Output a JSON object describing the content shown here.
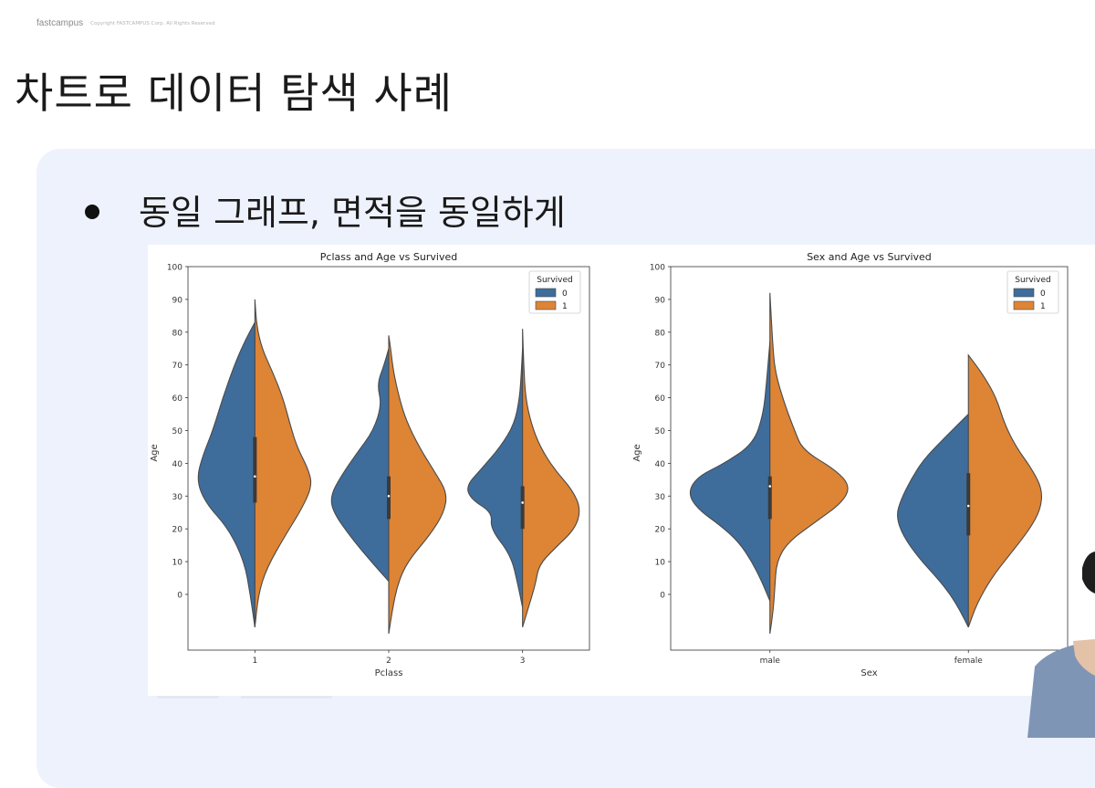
{
  "header": {
    "brand": "fastcampus",
    "copyright": "Copyright FASTCAMPUS Corp. All Rights Reserved"
  },
  "slide": {
    "title": "차트로 데이터 탐색 사례",
    "bullet": "동일 그래프, 면적을 동일하게"
  },
  "colors": {
    "survived_0": "#3e6d9c",
    "survived_1": "#dd8435",
    "outline": "#4a4a4a",
    "panel": "#eef2fc"
  },
  "chart_data": [
    {
      "type": "violin",
      "title": "Pclass and Age vs Survived",
      "xlabel": "Pclass",
      "ylabel": "Age",
      "categories": [
        "1",
        "2",
        "3"
      ],
      "yticks": [
        0,
        10,
        20,
        30,
        40,
        50,
        60,
        70,
        80,
        90,
        100
      ],
      "ylim": [
        -17,
        100
      ],
      "split": true,
      "legend": {
        "title": "Survived",
        "entries": [
          "0",
          "1"
        ],
        "position": "top-right"
      },
      "series": [
        {
          "name": "0",
          "violins": [
            {
              "min": -10,
              "max": 83,
              "widths": [
                [
                  -10,
                  0
                ],
                [
                  0,
                  0.08
                ],
                [
                  10,
                  0.18
                ],
                [
                  20,
                  0.45
                ],
                [
                  28,
                  0.85
                ],
                [
                  35,
                  1.0
                ],
                [
                  42,
                  0.9
                ],
                [
                  50,
                  0.72
                ],
                [
                  60,
                  0.55
                ],
                [
                  70,
                  0.35
                ],
                [
                  77,
                  0.18
                ],
                [
                  83,
                  0
                ]
              ]
            },
            {
              "min": 4,
              "max": 75,
              "widths": [
                [
                  4,
                  0
                ],
                [
                  10,
                  0.3
                ],
                [
                  17,
                  0.63
                ],
                [
                  25,
                  0.95
                ],
                [
                  30,
                  1.0
                ],
                [
                  36,
                  0.82
                ],
                [
                  43,
                  0.55
                ],
                [
                  50,
                  0.26
                ],
                [
                  58,
                  0.12
                ],
                [
                  64,
                  0.2
                ],
                [
                  70,
                  0.08
                ],
                [
                  75,
                  0
                ]
              ]
            },
            {
              "min": -4,
              "max": 75,
              "widths": [
                [
                  -4,
                  0
                ],
                [
                  3,
                  0.08
                ],
                [
                  12,
                  0.2
                ],
                [
                  20,
                  0.55
                ],
                [
                  25,
                  0.52
                ],
                [
                  29,
                  0.88
                ],
                [
                  33,
                  0.97
                ],
                [
                  38,
                  0.72
                ],
                [
                  45,
                  0.38
                ],
                [
                  52,
                  0.14
                ],
                [
                  60,
                  0.05
                ],
                [
                  68,
                  0.02
                ],
                [
                  75,
                  0
                ]
              ]
            }
          ]
        },
        {
          "name": "1",
          "violins": [
            {
              "min": -10,
              "max": 90,
              "widths": [
                [
                  -10,
                  0
                ],
                [
                  0,
                  0.06
                ],
                [
                  8,
                  0.2
                ],
                [
                  18,
                  0.52
                ],
                [
                  26,
                  0.8
                ],
                [
                  33,
                  0.98
                ],
                [
                  38,
                  0.92
                ],
                [
                  45,
                  0.72
                ],
                [
                  52,
                  0.6
                ],
                [
                  60,
                  0.48
                ],
                [
                  68,
                  0.3
                ],
                [
                  75,
                  0.12
                ],
                [
                  82,
                  0.03
                ],
                [
                  90,
                  0
                ]
              ]
            },
            {
              "min": -12,
              "max": 79,
              "widths": [
                [
                  -12,
                  0
                ],
                [
                  -5,
                  0.06
                ],
                [
                  3,
                  0.15
                ],
                [
                  10,
                  0.32
                ],
                [
                  18,
                  0.7
                ],
                [
                  25,
                  0.95
                ],
                [
                  31,
                  1.0
                ],
                [
                  37,
                  0.8
                ],
                [
                  45,
                  0.52
                ],
                [
                  53,
                  0.3
                ],
                [
                  60,
                  0.18
                ],
                [
                  68,
                  0.08
                ],
                [
                  74,
                  0.04
                ],
                [
                  79,
                  0
                ]
              ]
            },
            {
              "min": -10,
              "max": 81,
              "widths": [
                [
                  -10,
                  0
                ],
                [
                  -4,
                  0.1
                ],
                [
                  3,
                  0.22
                ],
                [
                  9,
                  0.28
                ],
                [
                  14,
                  0.55
                ],
                [
                  20,
                  0.9
                ],
                [
                  26,
                  1.0
                ],
                [
                  32,
                  0.85
                ],
                [
                  38,
                  0.55
                ],
                [
                  45,
                  0.3
                ],
                [
                  52,
                  0.15
                ],
                [
                  60,
                  0.05
                ],
                [
                  70,
                  0.02
                ],
                [
                  81,
                  0
                ]
              ]
            }
          ]
        }
      ],
      "box_median": [
        36,
        30,
        28
      ],
      "box_iqr": [
        [
          28,
          48
        ],
        [
          23,
          36
        ],
        [
          20,
          33
        ]
      ]
    },
    {
      "type": "violin",
      "title": "Sex and Age vs Survived",
      "xlabel": "Sex",
      "ylabel": "Age",
      "categories": [
        "male",
        "female"
      ],
      "yticks": [
        0,
        10,
        20,
        30,
        40,
        50,
        60,
        70,
        80,
        90,
        100
      ],
      "ylim": [
        -17,
        100
      ],
      "split": true,
      "legend": {
        "title": "Survived",
        "entries": [
          "0",
          "1"
        ],
        "position": "top-right"
      },
      "series": [
        {
          "name": "0",
          "violins": [
            {
              "min": -2,
              "max": 77,
              "widths": [
                [
                  -2,
                  0
                ],
                [
                  4,
                  0.1
                ],
                [
                  10,
                  0.22
                ],
                [
                  16,
                  0.38
                ],
                [
                  21,
                  0.6
                ],
                [
                  26,
                  0.88
                ],
                [
                  31,
                  1.0
                ],
                [
                  36,
                  0.88
                ],
                [
                  40,
                  0.55
                ],
                [
                  46,
                  0.2
                ],
                [
                  55,
                  0.08
                ],
                [
                  65,
                  0.04
                ],
                [
                  77,
                  0
                ]
              ]
            },
            {
              "min": -10,
              "max": 55,
              "widths": [
                [
                  -10,
                  0
                ],
                [
                  -5,
                  0.1
                ],
                [
                  0,
                  0.22
                ],
                [
                  5,
                  0.38
                ],
                [
                  11,
                  0.6
                ],
                [
                  18,
                  0.8
                ],
                [
                  24,
                  0.88
                ],
                [
                  29,
                  0.82
                ],
                [
                  35,
                  0.7
                ],
                [
                  41,
                  0.55
                ],
                [
                  47,
                  0.32
                ],
                [
                  52,
                  0.12
                ],
                [
                  55,
                  0
                ]
              ]
            }
          ]
        },
        {
          "name": "1",
          "violins": [
            {
              "min": -12,
              "max": 92,
              "widths": [
                [
                  -12,
                  0
                ],
                [
                  -5,
                  0.04
                ],
                [
                  2,
                  0.06
                ],
                [
                  10,
                  0.08
                ],
                [
                  16,
                  0.22
                ],
                [
                  22,
                  0.55
                ],
                [
                  28,
                  0.88
                ],
                [
                  33,
                  0.98
                ],
                [
                  38,
                  0.8
                ],
                [
                  44,
                  0.4
                ],
                [
                  50,
                  0.3
                ],
                [
                  58,
                  0.18
                ],
                [
                  68,
                  0.06
                ],
                [
                  78,
                  0.03
                ],
                [
                  92,
                  0
                ]
              ]
            },
            {
              "min": -10,
              "max": 73,
              "widths": [
                [
                  -10,
                  0
                ],
                [
                  -3,
                  0.1
                ],
                [
                  5,
                  0.28
                ],
                [
                  12,
                  0.5
                ],
                [
                  20,
                  0.75
                ],
                [
                  26,
                  0.88
                ],
                [
                  32,
                  0.9
                ],
                [
                  38,
                  0.78
                ],
                [
                  45,
                  0.58
                ],
                [
                  52,
                  0.44
                ],
                [
                  60,
                  0.34
                ],
                [
                  67,
                  0.18
                ],
                [
                  73,
                  0
                ]
              ]
            }
          ]
        }
      ],
      "box_median": [
        33,
        27
      ],
      "box_iqr": [
        [
          23,
          36
        ],
        [
          18,
          37
        ]
      ]
    }
  ]
}
